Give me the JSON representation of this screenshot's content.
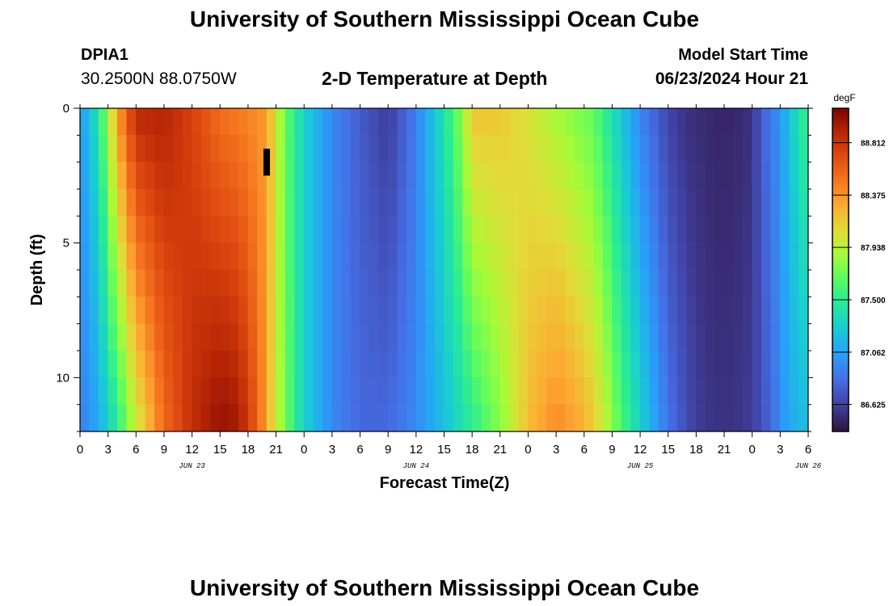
{
  "header": {
    "title": "University of Southern Mississippi Ocean Cube",
    "station_id": "DPIA1",
    "coordinates": "30.2500N  88.0750W",
    "subtitle": "2-D Temperature at Depth",
    "model_start_label": "Model Start Time",
    "model_start_value": "06/23/2024 Hour 21"
  },
  "footer": {
    "title": "University of Southern Mississippi Ocean Cube"
  },
  "chart_data": {
    "type": "heatmap",
    "title": "2-D Temperature at Depth",
    "xlabel": "Forecast Time(Z)",
    "ylabel": "Depth (ft)",
    "x_ticks": [
      "0",
      "3",
      "6",
      "9",
      "12",
      "15",
      "18",
      "21",
      "0",
      "3",
      "6",
      "9",
      "12",
      "15",
      "18",
      "21",
      "0",
      "3",
      "6",
      "9",
      "12",
      "15",
      "18",
      "21",
      "0",
      "3",
      "6"
    ],
    "date_labels": [
      {
        "label": "JUN 23",
        "hour": 12
      },
      {
        "label": "JUN 24",
        "hour": 36
      },
      {
        "label": "JUN 25",
        "hour": 60
      },
      {
        "label": "JUN 26",
        "hour": 78
      }
    ],
    "x_range_hours": [
      0,
      78
    ],
    "y_ticks": [
      "0",
      "5",
      "10"
    ],
    "y_range_ft": [
      0,
      12
    ],
    "colorbar": {
      "unit": "degF",
      "ticks": [
        "88.812",
        "88.375",
        "87.938",
        "87.500",
        "87.062",
        "86.625"
      ],
      "range": [
        86.4,
        89.1
      ]
    },
    "depth_levels_ft": [
      0.5,
      1.5,
      2.5,
      3.5,
      4.5,
      5.5,
      6.5,
      7.5,
      8.5,
      9.5,
      10.5,
      11.5
    ],
    "surface_profile_degF": [
      [
        0,
        87.0
      ],
      [
        2,
        87.4
      ],
      [
        4,
        88.3
      ],
      [
        6,
        88.85
      ],
      [
        9,
        88.9
      ],
      [
        12,
        88.75
      ],
      [
        15,
        88.55
      ],
      [
        18,
        88.45
      ],
      [
        20,
        88.35
      ],
      [
        22,
        87.7
      ],
      [
        24,
        87.3
      ],
      [
        27,
        86.95
      ],
      [
        30,
        86.75
      ],
      [
        33,
        86.6
      ],
      [
        36,
        86.9
      ],
      [
        39,
        87.4
      ],
      [
        41,
        87.8
      ],
      [
        42,
        88.15
      ],
      [
        45,
        88.15
      ],
      [
        48,
        88.05
      ],
      [
        50,
        87.95
      ],
      [
        53,
        87.8
      ],
      [
        55,
        87.7
      ],
      [
        57,
        87.4
      ],
      [
        60,
        86.95
      ],
      [
        63,
        86.65
      ],
      [
        65,
        86.55
      ],
      [
        68,
        86.5
      ],
      [
        70,
        86.5
      ],
      [
        72,
        86.55
      ],
      [
        73,
        86.75
      ],
      [
        75,
        87.0
      ],
      [
        77,
        87.4
      ],
      [
        78,
        87.55
      ]
    ],
    "bottom_profile_degF": [
      [
        0,
        86.9
      ],
      [
        2,
        87.1
      ],
      [
        4,
        87.5
      ],
      [
        6,
        88.0
      ],
      [
        9,
        88.55
      ],
      [
        12,
        88.85
      ],
      [
        14,
        88.95
      ],
      [
        15,
        89.0
      ],
      [
        17,
        88.95
      ],
      [
        19,
        88.6
      ],
      [
        21,
        88.0
      ],
      [
        23,
        87.5
      ],
      [
        24,
        87.3
      ],
      [
        27,
        86.95
      ],
      [
        30,
        86.8
      ],
      [
        33,
        86.8
      ],
      [
        36,
        86.95
      ],
      [
        39,
        87.2
      ],
      [
        42,
        87.5
      ],
      [
        45,
        87.8
      ],
      [
        48,
        88.2
      ],
      [
        51,
        88.4
      ],
      [
        54,
        88.25
      ],
      [
        56,
        88.0
      ],
      [
        58,
        87.6
      ],
      [
        60,
        87.3
      ],
      [
        63,
        86.85
      ],
      [
        66,
        86.6
      ],
      [
        68,
        86.55
      ],
      [
        70,
        86.55
      ],
      [
        72,
        86.6
      ],
      [
        74,
        86.8
      ],
      [
        76,
        87.1
      ],
      [
        78,
        87.2
      ]
    ],
    "missing_cell": {
      "hour": 20,
      "depth_ft": [
        1.5,
        2.5
      ]
    }
  }
}
